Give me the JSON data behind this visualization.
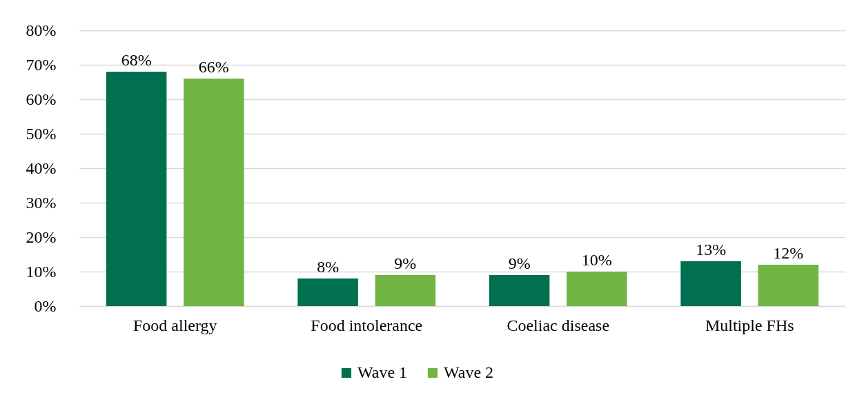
{
  "chart_data": {
    "type": "bar",
    "categories": [
      "Food allergy",
      "Food intolerance",
      "Coeliac disease",
      "Multiple FHs"
    ],
    "series": [
      {
        "name": "Wave 1",
        "color": "#007050",
        "values": [
          68,
          8,
          9,
          13
        ],
        "value_labels": [
          "68%",
          "8%",
          "9%",
          "13%"
        ]
      },
      {
        "name": "Wave 2",
        "color": "#70b443",
        "values": [
          66,
          9,
          10,
          12
        ],
        "value_labels": [
          "66%",
          "9%",
          "10%",
          "12%"
        ]
      }
    ],
    "ylim": [
      0,
      80
    ],
    "yticks": [
      {
        "value": 0,
        "label": "0%"
      },
      {
        "value": 10,
        "label": "10%"
      },
      {
        "value": 20,
        "label": "20%"
      },
      {
        "value": 30,
        "label": "30%"
      },
      {
        "value": 40,
        "label": "40%"
      },
      {
        "value": 50,
        "label": "50%"
      },
      {
        "value": 60,
        "label": "60%"
      },
      {
        "value": 70,
        "label": "70%"
      },
      {
        "value": 80,
        "label": "80%"
      }
    ],
    "grid": true,
    "legend": "bottom"
  }
}
